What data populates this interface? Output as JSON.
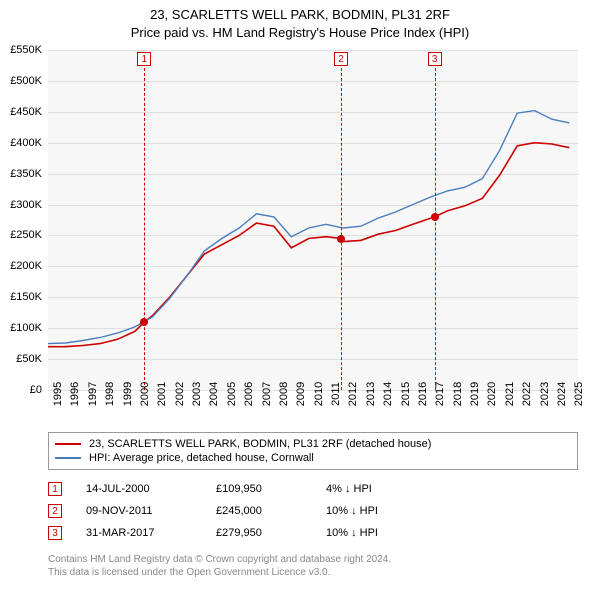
{
  "title": {
    "line1": "23, SCARLETTS WELL PARK, BODMIN, PL31 2RF",
    "line2": "Price paid vs. HM Land Registry's House Price Index (HPI)"
  },
  "chart": {
    "type": "line",
    "background_color": "#f7f7f7",
    "grid_color": "#e0e0e0",
    "axis_color": "#000000",
    "x_years": [
      1995,
      1996,
      1997,
      1998,
      1999,
      2000,
      2001,
      2002,
      2003,
      2004,
      2005,
      2006,
      2007,
      2008,
      2009,
      2010,
      2011,
      2012,
      2013,
      2014,
      2015,
      2016,
      2017,
      2018,
      2019,
      2020,
      2021,
      2022,
      2023,
      2024,
      2025
    ],
    "xlim": [
      1995,
      2025.5
    ],
    "ylim": [
      0,
      550000
    ],
    "ytick_step": 50000,
    "ytick_labels": [
      "£0",
      "£50K",
      "£100K",
      "£150K",
      "£200K",
      "£250K",
      "£300K",
      "£350K",
      "£400K",
      "£450K",
      "£500K",
      "£550K"
    ],
    "label_fontsize": 11,
    "series": [
      {
        "name": "price_paid",
        "color": "#cc0000",
        "width": 1.6,
        "points": [
          [
            1995,
            70000
          ],
          [
            1996,
            70000
          ],
          [
            1997,
            72000
          ],
          [
            1998,
            75000
          ],
          [
            1999,
            82000
          ],
          [
            2000,
            95000
          ],
          [
            2000.54,
            109950
          ],
          [
            2001,
            120000
          ],
          [
            2002,
            150000
          ],
          [
            2003,
            185000
          ],
          [
            2004,
            220000
          ],
          [
            2005,
            235000
          ],
          [
            2006,
            250000
          ],
          [
            2007,
            270000
          ],
          [
            2008,
            265000
          ],
          [
            2009,
            230000
          ],
          [
            2010,
            245000
          ],
          [
            2011,
            248000
          ],
          [
            2011.86,
            245000
          ],
          [
            2012,
            240000
          ],
          [
            2013,
            242000
          ],
          [
            2014,
            252000
          ],
          [
            2015,
            258000
          ],
          [
            2016,
            268000
          ],
          [
            2017.25,
            279950
          ],
          [
            2018,
            290000
          ],
          [
            2019,
            298000
          ],
          [
            2020,
            310000
          ],
          [
            2021,
            348000
          ],
          [
            2022,
            395000
          ],
          [
            2023,
            400000
          ],
          [
            2024,
            398000
          ],
          [
            2025,
            392000
          ]
        ]
      },
      {
        "name": "hpi",
        "color": "#4a7ebb",
        "width": 1.4,
        "points": [
          [
            1995,
            75000
          ],
          [
            1996,
            76000
          ],
          [
            1997,
            80000
          ],
          [
            1998,
            85000
          ],
          [
            1999,
            92000
          ],
          [
            2000,
            102000
          ],
          [
            2001,
            118000
          ],
          [
            2002,
            148000
          ],
          [
            2003,
            185000
          ],
          [
            2004,
            225000
          ],
          [
            2005,
            245000
          ],
          [
            2006,
            262000
          ],
          [
            2007,
            285000
          ],
          [
            2008,
            280000
          ],
          [
            2009,
            248000
          ],
          [
            2010,
            262000
          ],
          [
            2011,
            268000
          ],
          [
            2012,
            262000
          ],
          [
            2013,
            265000
          ],
          [
            2014,
            278000
          ],
          [
            2015,
            288000
          ],
          [
            2016,
            300000
          ],
          [
            2017,
            312000
          ],
          [
            2018,
            322000
          ],
          [
            2019,
            328000
          ],
          [
            2020,
            342000
          ],
          [
            2021,
            388000
          ],
          [
            2022,
            448000
          ],
          [
            2023,
            452000
          ],
          [
            2024,
            438000
          ],
          [
            2025,
            432000
          ]
        ]
      }
    ],
    "sale_markers": [
      {
        "n": "1",
        "year": 2000.54,
        "price": 109950
      },
      {
        "n": "2",
        "year": 2011.86,
        "price": 245000
      },
      {
        "n": "3",
        "year": 2017.25,
        "price": 279950
      }
    ]
  },
  "legend": {
    "items": [
      {
        "color": "#cc0000",
        "label": "23, SCARLETTS WELL PARK, BODMIN, PL31 2RF (detached house)"
      },
      {
        "color": "#4a7ebb",
        "label": "HPI: Average price, detached house, Cornwall"
      }
    ]
  },
  "sales": [
    {
      "n": "1",
      "date": "14-JUL-2000",
      "price": "£109,950",
      "diff": "4% ↓ HPI"
    },
    {
      "n": "2",
      "date": "09-NOV-2011",
      "price": "£245,000",
      "diff": "10% ↓ HPI"
    },
    {
      "n": "3",
      "date": "31-MAR-2017",
      "price": "£279,950",
      "diff": "10% ↓ HPI"
    }
  ],
  "footer": {
    "line1": "Contains HM Land Registry data © Crown copyright and database right 2024.",
    "line2": "This data is licensed under the Open Government Licence v3.0."
  }
}
